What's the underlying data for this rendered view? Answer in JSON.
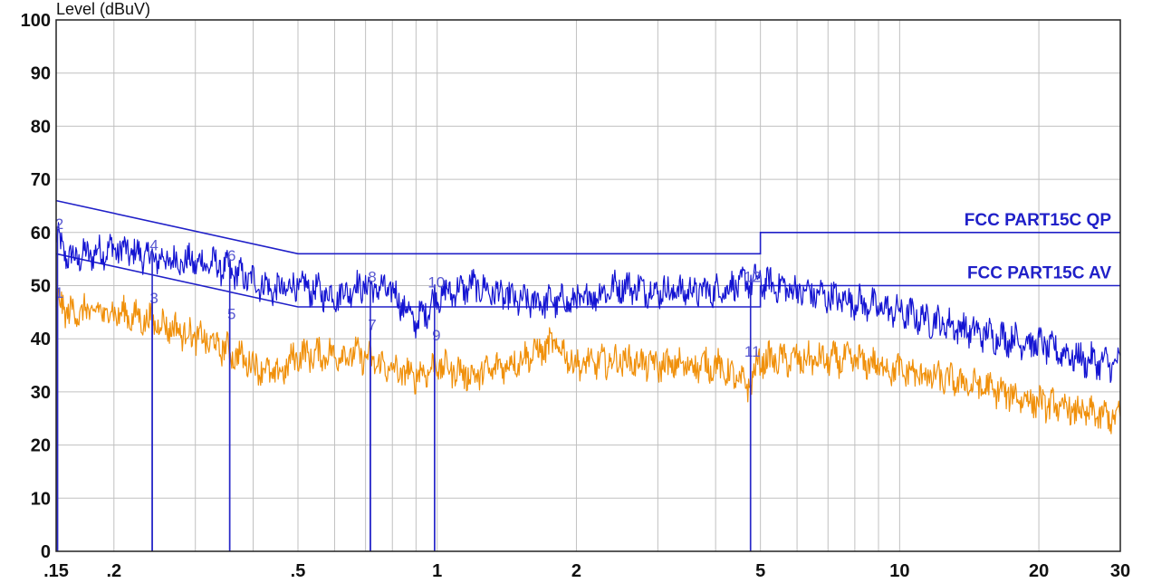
{
  "chart_data": {
    "type": "line",
    "title": "",
    "ylabel": "Level (dBuV)",
    "xlabel": "",
    "x_scale": "log",
    "xlim": [
      0.15,
      30
    ],
    "ylim": [
      0,
      100
    ],
    "y_ticks": [
      0,
      10,
      20,
      30,
      40,
      50,
      60,
      70,
      80,
      90,
      100
    ],
    "x_ticks": [
      0.15,
      0.2,
      0.5,
      1,
      2,
      5,
      10,
      20,
      30
    ],
    "x_tick_labels": [
      ".15",
      ".2",
      ".5",
      "1",
      "2",
      "5",
      "10",
      "20",
      "30"
    ],
    "grid": true,
    "colors": {
      "limit": "#2020c8",
      "qp_trace": "#1414d2",
      "av_trace": "#f0900a",
      "marker": "#2828c8",
      "marker_label": "#5a5ad2",
      "grid": "#c0c0c0"
    },
    "limits": [
      {
        "name": "FCC PART15C QP",
        "points": [
          [
            0.15,
            66
          ],
          [
            0.5,
            56
          ],
          [
            5,
            56
          ],
          [
            5,
            60
          ],
          [
            30,
            60
          ]
        ]
      },
      {
        "name": "FCC PART15C AV",
        "points": [
          [
            0.15,
            56
          ],
          [
            0.5,
            46
          ],
          [
            5,
            46
          ],
          [
            5,
            50
          ],
          [
            30,
            50
          ]
        ]
      }
    ],
    "series": [
      {
        "trace": "qp",
        "envelope": [
          [
            0.15,
            60
          ],
          [
            0.16,
            56
          ],
          [
            0.2,
            58
          ],
          [
            0.25,
            56
          ],
          [
            0.33,
            55
          ],
          [
            0.45,
            50
          ],
          [
            0.5,
            51
          ],
          [
            0.6,
            49
          ],
          [
            0.68,
            51
          ],
          [
            0.8,
            50
          ],
          [
            0.9,
            44
          ],
          [
            1.0,
            49
          ],
          [
            1.2,
            51
          ],
          [
            1.5,
            48
          ],
          [
            2.0,
            48
          ],
          [
            2.5,
            51
          ],
          [
            3.0,
            50
          ],
          [
            4.0,
            50
          ],
          [
            4.85,
            52
          ],
          [
            6.0,
            50
          ],
          [
            8.0,
            48
          ],
          [
            10.0,
            46
          ],
          [
            15.0,
            42
          ],
          [
            20.0,
            40
          ],
          [
            25.0,
            37
          ],
          [
            30.0,
            36
          ]
        ]
      },
      {
        "trace": "av",
        "envelope": [
          [
            0.15,
            48
          ],
          [
            0.16,
            46
          ],
          [
            0.2,
            46
          ],
          [
            0.25,
            44
          ],
          [
            0.33,
            40
          ],
          [
            0.45,
            34
          ],
          [
            0.5,
            38
          ],
          [
            0.6,
            38
          ],
          [
            0.68,
            38
          ],
          [
            0.8,
            35
          ],
          [
            0.9,
            34
          ],
          [
            1.0,
            36
          ],
          [
            1.2,
            34
          ],
          [
            1.5,
            37
          ],
          [
            1.8,
            40
          ],
          [
            2.0,
            36
          ],
          [
            2.5,
            37
          ],
          [
            3.0,
            36
          ],
          [
            4.0,
            36
          ],
          [
            4.7,
            32
          ],
          [
            5.0,
            37
          ],
          [
            6.0,
            37
          ],
          [
            8.0,
            37
          ],
          [
            10.0,
            35
          ],
          [
            15.0,
            32
          ],
          [
            20.0,
            29
          ],
          [
            25.0,
            27
          ],
          [
            30.0,
            26
          ]
        ]
      }
    ],
    "markers": [
      {
        "label": "1",
        "x": 0.151,
        "y": 48
      },
      {
        "label": "2",
        "x": 0.151,
        "y": 61
      },
      {
        "label": "3",
        "x": 0.242,
        "y": 47
      },
      {
        "label": "4",
        "x": 0.242,
        "y": 57
      },
      {
        "label": "5",
        "x": 0.356,
        "y": 44
      },
      {
        "label": "6",
        "x": 0.356,
        "y": 55
      },
      {
        "label": "7",
        "x": 0.717,
        "y": 42
      },
      {
        "label": "8",
        "x": 0.717,
        "y": 51
      },
      {
        "label": "9",
        "x": 0.987,
        "y": 40
      },
      {
        "label": "10",
        "x": 0.987,
        "y": 50
      },
      {
        "label": "11",
        "x": 4.76,
        "y": 37
      },
      {
        "label": "12",
        "x": 4.76,
        "y": 51
      }
    ]
  }
}
